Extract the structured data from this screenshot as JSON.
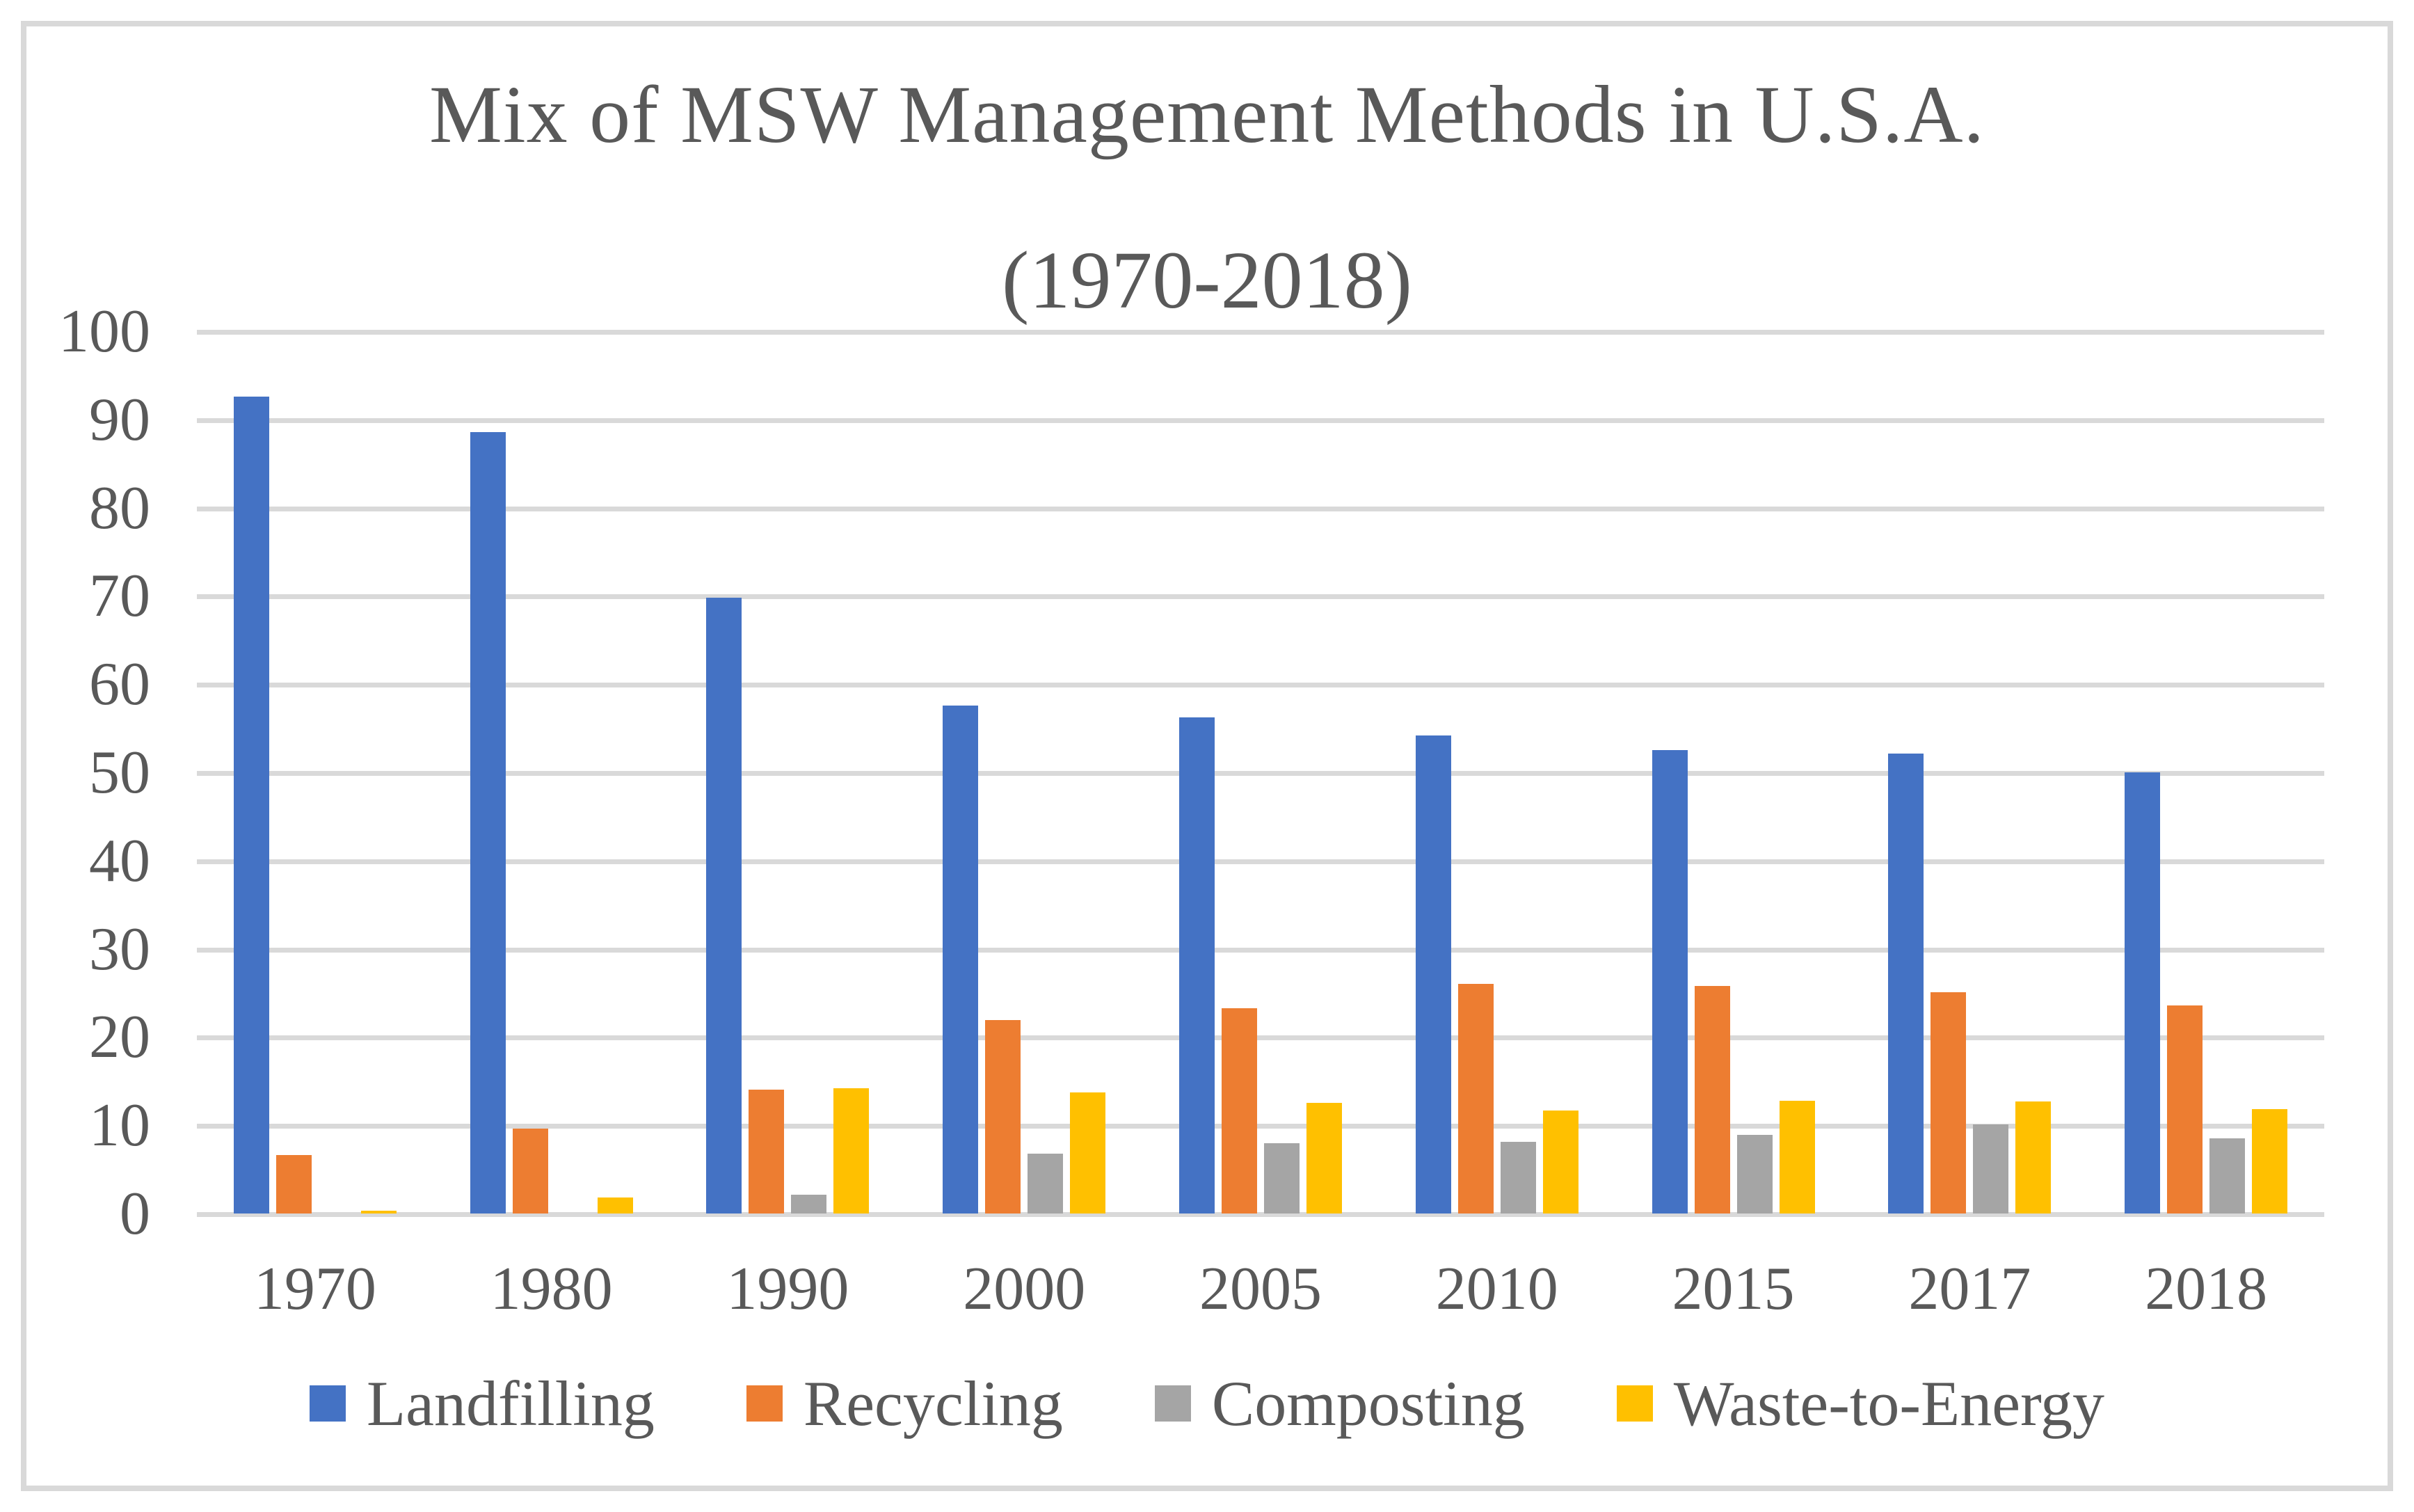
{
  "chart_data": {
    "type": "bar",
    "title_line1": "Mix of MSW Management Methods in U.S.A.",
    "title_line2": "(1970-2018)",
    "categories": [
      "1970",
      "1980",
      "1990",
      "2000",
      "2005",
      "2010",
      "2015",
      "2017",
      "2018"
    ],
    "series": [
      {
        "name": "Landfilling",
        "color": "#4472C4",
        "values": [
          92.6,
          88.6,
          69.8,
          57.6,
          56.2,
          54.2,
          52.5,
          52.1,
          50.0
        ]
      },
      {
        "name": "Recycling",
        "color": "#ED7D31",
        "values": [
          6.6,
          9.6,
          14.0,
          21.9,
          23.3,
          26.0,
          25.8,
          25.1,
          23.6
        ]
      },
      {
        "name": "Composting",
        "color": "#A5A5A5",
        "values": [
          0,
          0,
          2.1,
          6.8,
          8.0,
          8.1,
          8.9,
          10.1,
          8.5
        ]
      },
      {
        "name": "Waste-to-Energy",
        "color": "#FFC000",
        "values": [
          0.3,
          1.8,
          14.2,
          13.7,
          12.5,
          11.7,
          12.8,
          12.7,
          11.8
        ]
      }
    ],
    "y_axis": {
      "min": 0,
      "max": 100,
      "step": 10,
      "tick_labels": [
        "0",
        "10",
        "20",
        "30",
        "40",
        "50",
        "60",
        "70",
        "80",
        "90",
        "100"
      ]
    },
    "xlabel": "",
    "ylabel": "",
    "grid": true,
    "legend_position": "bottom"
  },
  "colors": {
    "text": "#595959",
    "gridline": "#D9D9D9",
    "frame": "#D9D9D9",
    "background": "#FFFFFF"
  }
}
